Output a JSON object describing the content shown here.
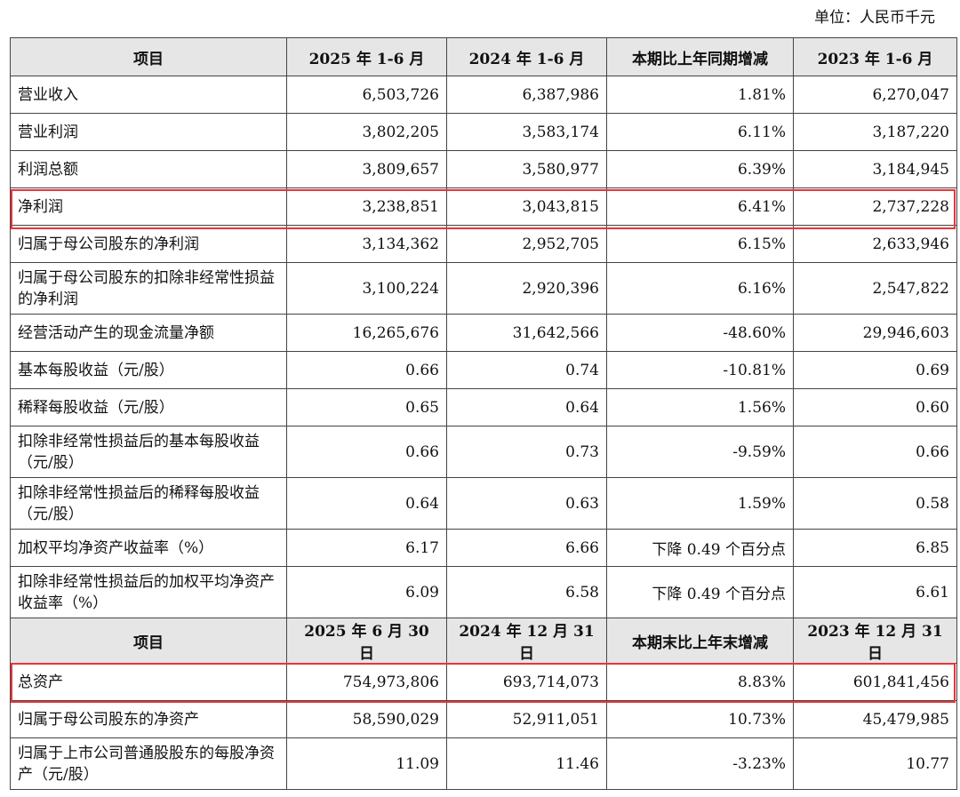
{
  "unit": "单位：人民币千元",
  "header1": [
    "项目",
    "2025 年 1-6 月",
    "2024 年 1-6 月",
    "本期比上年同期增减",
    "2023 年 1-6 月"
  ],
  "rows1": [
    [
      "营业收入",
      "6,503,726",
      "6,387,986",
      "1.81%",
      "6,270,047"
    ],
    [
      "营业利润",
      "3,802,205",
      "3,583,174",
      "6.11%",
      "3,187,220"
    ],
    [
      "利润总额",
      "3,809,657",
      "3,580,977",
      "6.39%",
      "3,184,945"
    ],
    [
      "净利润",
      "3,238,851",
      "3,043,815",
      "6.41%",
      "2,737,228"
    ],
    [
      "归属于母公司股东的净利润",
      "3,134,362",
      "2,952,705",
      "6.15%",
      "2,633,946"
    ],
    [
      "归属于母公司股东的扣除非经常性损益的净利润",
      "3,100,224",
      "2,920,396",
      "6.16%",
      "2,547,822"
    ],
    [
      "经营活动产生的现金流量净额",
      "16,265,676",
      "31,642,566",
      "-48.60%",
      "29,946,603"
    ],
    [
      "基本每股收益（元/股）",
      "0.66",
      "0.74",
      "-10.81%",
      "0.69"
    ],
    [
      "稀释每股收益（元/股）",
      "0.65",
      "0.64",
      "1.56%",
      "0.60"
    ],
    [
      "扣除非经常性损益后的基本每股收益（元/股）",
      "0.66",
      "0.73",
      "-9.59%",
      "0.66"
    ],
    [
      "扣除非经常性损益后的稀释每股收益（元/股）",
      "0.64",
      "0.63",
      "1.59%",
      "0.58"
    ],
    [
      "加权平均净资产收益率（%）",
      "6.17",
      "6.66",
      "下降 0.49 个百分点",
      "6.85"
    ],
    [
      "扣除非经常性损益后的加权平均净资产收益率（%）",
      "6.09",
      "6.58",
      "下降 0.49 个百分点",
      "6.61"
    ]
  ],
  "header2": [
    "项目",
    "2025 年 6 月 30 日",
    "2024 年 12 月 31 日",
    "本期末比上年末增减",
    "2023 年 12 月 31 日"
  ],
  "rows2": [
    [
      "总资产",
      "754,973,806",
      "693,714,073",
      "8.83%",
      "601,841,456"
    ],
    [
      "归属于母公司股东的净资产",
      "58,590,029",
      "52,911,051",
      "10.73%",
      "45,479,985"
    ],
    [
      "归属于上市公司普通股股东的每股净资产（元/股）",
      "11.09",
      "11.46",
      "-3.23%",
      "10.77"
    ]
  ],
  "highlight_color": "#e8353b"
}
